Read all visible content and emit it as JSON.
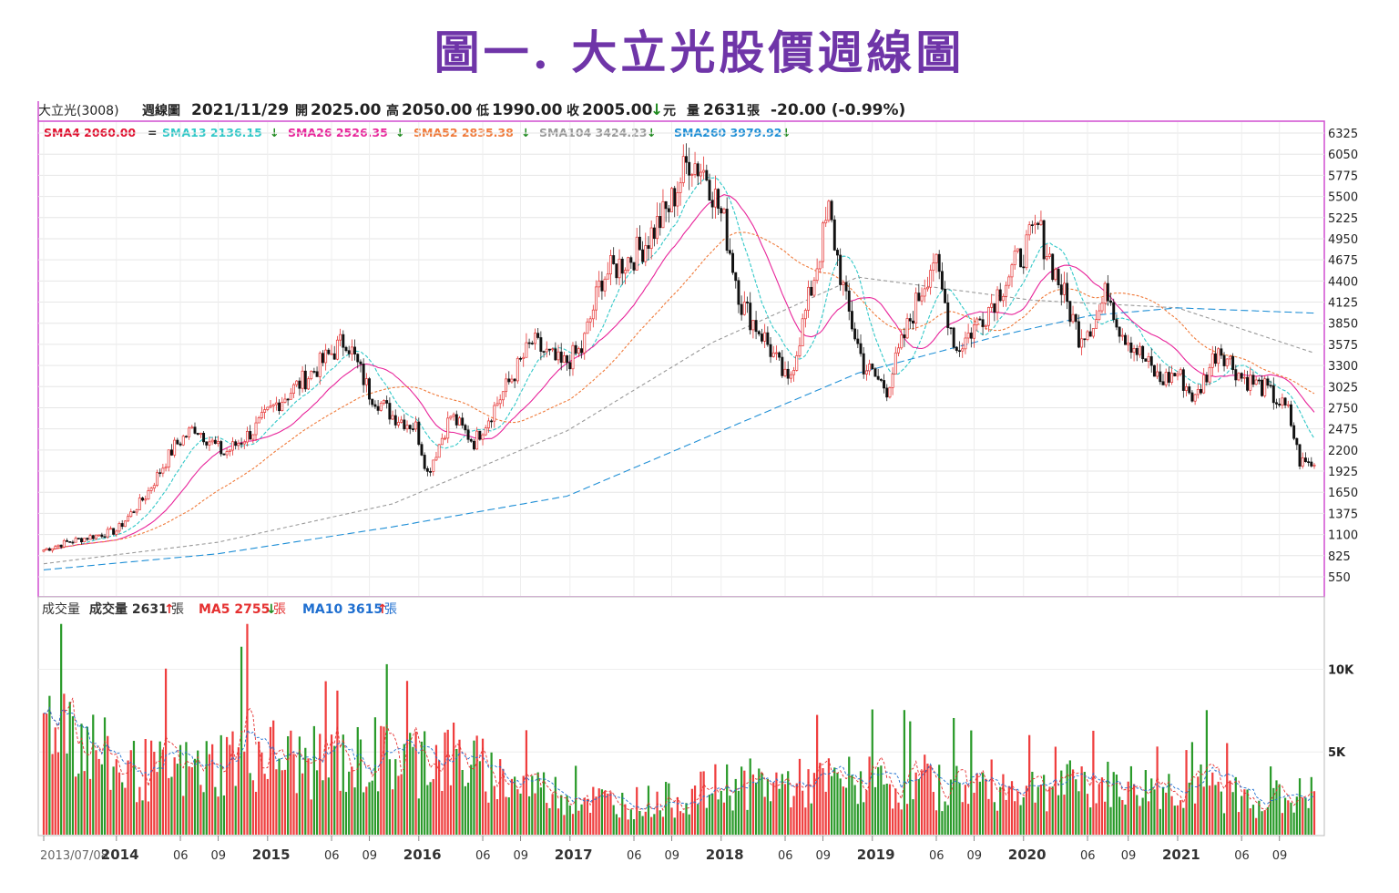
{
  "figure_title": "圖一. 大立光股價週線圖",
  "chart_data": {
    "type": "candlestick",
    "header": {
      "stock": "大立光(3008)",
      "period": "週線圖",
      "date": "2021/11/29",
      "open_label": "開",
      "open": "2025.00",
      "high_label": "高",
      "high": "2050.00",
      "low_label": "低",
      "low": "1990.00",
      "close_label": "收",
      "close": "2005.00",
      "close_arrow": "↓",
      "unit": "元",
      "volume_label": "量",
      "volume": "2631",
      "volume_unit": "張",
      "change": "-20.00 (-0.99%)"
    },
    "ma_legend": [
      {
        "label": "SMA4 2060.00",
        "arrow": "=",
        "color": "#e0102f"
      },
      {
        "label": "SMA13 2136.15",
        "arrow": "↓",
        "color": "#31c8c8"
      },
      {
        "label": "SMA26 2526.35",
        "arrow": "↓",
        "color": "#e8249a"
      },
      {
        "label": "SMA52 2835.38",
        "arrow": "↓",
        "color": "#f07a3a"
      },
      {
        "label": "SMA104 3424.23",
        "arrow": "↓",
        "color": "#999999"
      },
      {
        "label": "SMA260 3979.92",
        "arrow": "↓",
        "color": "#1f8fd6"
      }
    ],
    "price_axis": {
      "ticks": [
        "6325",
        "6050",
        "5775",
        "5500",
        "5225",
        "4950",
        "4675",
        "4400",
        "4125",
        "3850",
        "3575",
        "3300",
        "3025",
        "2750",
        "2475",
        "2200",
        "1925",
        "1650",
        "1375",
        "1100",
        "825",
        "550"
      ],
      "min": 550,
      "max": 6325
    },
    "x_axis": {
      "start": "2013/07/08",
      "ticks": [
        {
          "label": "2013/07/08",
          "week": 0,
          "bold": false
        },
        {
          "label": "2014",
          "week": 25,
          "bold": true
        },
        {
          "label": "06",
          "week": 47,
          "bold": false
        },
        {
          "label": "09",
          "week": 60,
          "bold": false
        },
        {
          "label": "2015",
          "week": 77,
          "bold": true
        },
        {
          "label": "06",
          "week": 99,
          "bold": false
        },
        {
          "label": "09",
          "week": 112,
          "bold": false
        },
        {
          "label": "2016",
          "week": 129,
          "bold": true
        },
        {
          "label": "06",
          "week": 151,
          "bold": false
        },
        {
          "label": "09",
          "week": 164,
          "bold": false
        },
        {
          "label": "2017",
          "week": 181,
          "bold": true
        },
        {
          "label": "06",
          "week": 203,
          "bold": false
        },
        {
          "label": "09",
          "week": 216,
          "bold": false
        },
        {
          "label": "2018",
          "week": 233,
          "bold": true
        },
        {
          "label": "06",
          "week": 255,
          "bold": false
        },
        {
          "label": "09",
          "week": 268,
          "bold": false
        },
        {
          "label": "2019",
          "week": 285,
          "bold": true
        },
        {
          "label": "06",
          "week": 307,
          "bold": false
        },
        {
          "label": "09",
          "week": 320,
          "bold": false
        },
        {
          "label": "2020",
          "week": 337,
          "bold": true
        },
        {
          "label": "06",
          "week": 359,
          "bold": false
        },
        {
          "label": "09",
          "week": 373,
          "bold": false
        },
        {
          "label": "2021",
          "week": 390,
          "bold": true
        },
        {
          "label": "06",
          "week": 412,
          "bold": false
        },
        {
          "label": "09",
          "week": 425,
          "bold": false
        }
      ],
      "total_weeks": 438
    },
    "price_anchors": [
      [
        0,
        900
      ],
      [
        8,
        1000
      ],
      [
        25,
        1150
      ],
      [
        35,
        1600
      ],
      [
        45,
        2250
      ],
      [
        52,
        2500
      ],
      [
        62,
        2150
      ],
      [
        72,
        2450
      ],
      [
        80,
        2800
      ],
      [
        92,
        3200
      ],
      [
        104,
        3650
      ],
      [
        112,
        2950
      ],
      [
        120,
        2650
      ],
      [
        128,
        2500
      ],
      [
        132,
        1900
      ],
      [
        140,
        2650
      ],
      [
        148,
        2300
      ],
      [
        158,
        2950
      ],
      [
        168,
        3600
      ],
      [
        178,
        3300
      ],
      [
        185,
        3500
      ],
      [
        192,
        4450
      ],
      [
        205,
        4800
      ],
      [
        215,
        5350
      ],
      [
        222,
        6000
      ],
      [
        228,
        5800
      ],
      [
        234,
        5150
      ],
      [
        240,
        4100
      ],
      [
        248,
        3650
      ],
      [
        256,
        3050
      ],
      [
        264,
        4300
      ],
      [
        270,
        5300
      ],
      [
        276,
        4100
      ],
      [
        282,
        3300
      ],
      [
        290,
        3000
      ],
      [
        298,
        3900
      ],
      [
        306,
        4700
      ],
      [
        314,
        3500
      ],
      [
        324,
        4000
      ],
      [
        334,
        4600
      ],
      [
        342,
        5100
      ],
      [
        350,
        4300
      ],
      [
        356,
        3700
      ],
      [
        362,
        3900
      ],
      [
        366,
        4300
      ],
      [
        370,
        3800
      ],
      [
        376,
        3500
      ],
      [
        384,
        3100
      ],
      [
        390,
        3200
      ],
      [
        396,
        2850
      ],
      [
        404,
        3550
      ],
      [
        412,
        3150
      ],
      [
        420,
        3000
      ],
      [
        428,
        2700
      ],
      [
        432,
        2050
      ],
      [
        438,
        2005
      ]
    ],
    "ma_trends": {
      "SMA104": [
        [
          0,
          720
        ],
        [
          60,
          1000
        ],
        [
          120,
          1500
        ],
        [
          180,
          2450
        ],
        [
          230,
          3600
        ],
        [
          280,
          4450
        ],
        [
          340,
          4150
        ],
        [
          390,
          4050
        ],
        [
          438,
          3450
        ]
      ],
      "SMA260": [
        [
          0,
          640
        ],
        [
          60,
          850
        ],
        [
          120,
          1200
        ],
        [
          180,
          1600
        ],
        [
          230,
          2400
        ],
        [
          280,
          3200
        ],
        [
          330,
          3700
        ],
        [
          360,
          3950
        ],
        [
          390,
          4050
        ],
        [
          438,
          3980
        ]
      ]
    },
    "volume_panel": {
      "label": "成交量",
      "vol_label": "成交量 2631",
      "vol_arrow": "↑",
      "vol_unit": "張",
      "ma5_label": "MA5 2755",
      "ma5_arrow": "↓",
      "ma5_unit": "張",
      "ma10_label": "MA10 3615",
      "ma10_arrow": "↑",
      "ma10_unit": "張",
      "ticks": [
        "10K",
        "5K"
      ],
      "max": 13000,
      "anchors": [
        [
          0,
          7000
        ],
        [
          6,
          9000
        ],
        [
          12,
          6500
        ],
        [
          25,
          4200
        ],
        [
          40,
          4000
        ],
        [
          55,
          4200
        ],
        [
          70,
          5500
        ],
        [
          90,
          4500
        ],
        [
          110,
          4700
        ],
        [
          125,
          4800
        ],
        [
          140,
          5000
        ],
        [
          160,
          3400
        ],
        [
          180,
          2500
        ],
        [
          200,
          2000
        ],
        [
          220,
          2300
        ],
        [
          235,
          3200
        ],
        [
          260,
          3200
        ],
        [
          280,
          3400
        ],
        [
          300,
          3000
        ],
        [
          320,
          3200
        ],
        [
          340,
          3000
        ],
        [
          360,
          3200
        ],
        [
          380,
          3000
        ],
        [
          400,
          3000
        ],
        [
          420,
          2000
        ],
        [
          438,
          2631
        ]
      ]
    },
    "colors": {
      "up": "#e53030",
      "down": "#1f8a1f",
      "volume_up": "#ef3e3e",
      "volume_down": "#2a9a2a",
      "frame": "#d04fd0"
    }
  }
}
